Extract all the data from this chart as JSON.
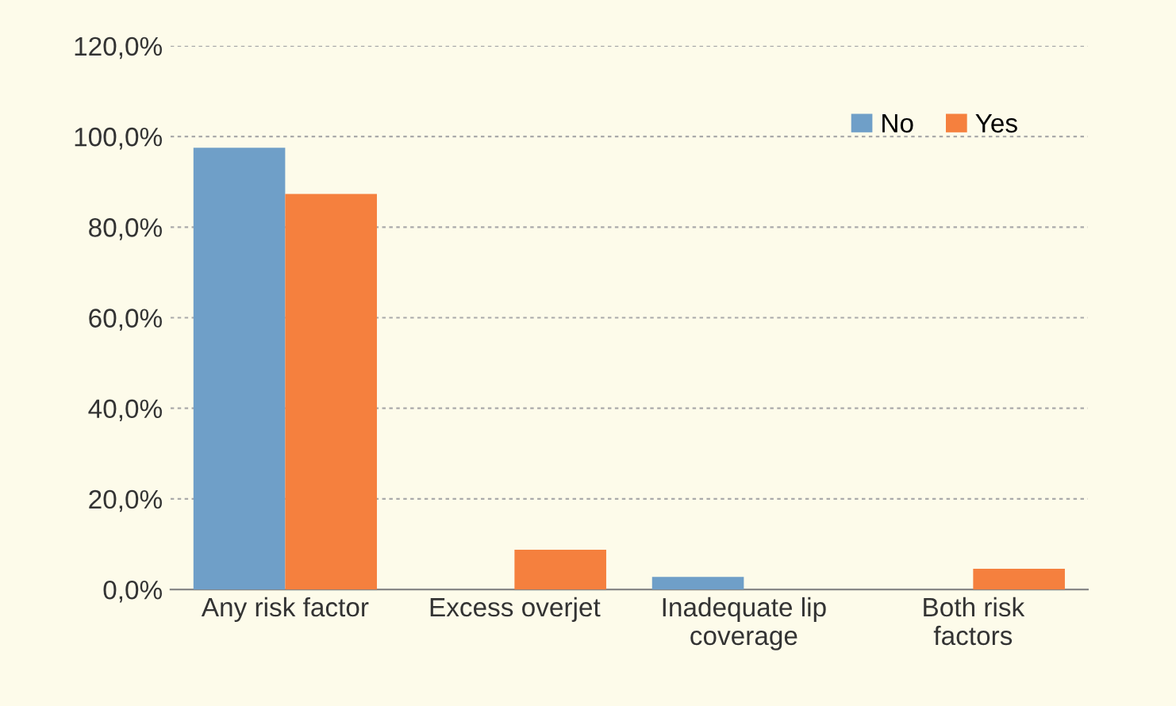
{
  "chart_data": {
    "type": "bar",
    "categories": [
      "Any risk factor",
      "Excess overjet",
      "Inadequate lip\ncoverage",
      "Both risk\nfactors"
    ],
    "series": [
      {
        "name": "No",
        "color": "#6f9fc8",
        "values": [
          97.5,
          0,
          2.8,
          0
        ]
      },
      {
        "name": "Yes",
        "color": "#f5803e",
        "values": [
          87.3,
          8.8,
          0,
          4.6
        ]
      }
    ],
    "ylim": [
      0,
      120
    ],
    "yticks": [
      {
        "value": 0,
        "label": "0,0%"
      },
      {
        "value": 20,
        "label": "20,0%"
      },
      {
        "value": 40,
        "label": "40,0%"
      },
      {
        "value": 60,
        "label": "60,0%"
      },
      {
        "value": 80,
        "label": "80,0%"
      },
      {
        "value": 100,
        "label": "100,0%"
      },
      {
        "value": 120,
        "label": "120,0%"
      }
    ],
    "grid": "y",
    "legend": "top right"
  }
}
